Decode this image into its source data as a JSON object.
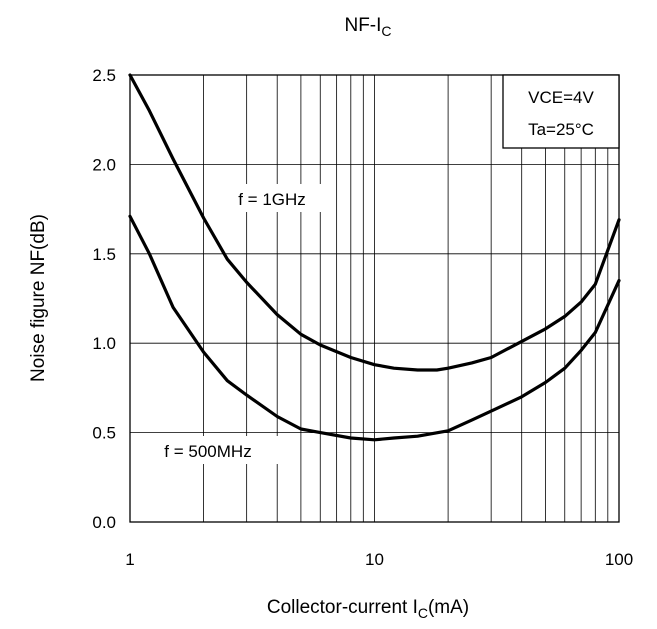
{
  "chart_data": {
    "type": "line",
    "title_main": "NF-I",
    "title_sub": "C",
    "xlabel_main": "Collector-current I",
    "xlabel_sub": "C",
    "xlabel_unit": "(mA)",
    "ylabel": "Noise figure NF(dB)",
    "x_scale": "log",
    "xlim": [
      1,
      100
    ],
    "ylim": [
      0,
      2.5
    ],
    "x_ticks": [
      1,
      10,
      100
    ],
    "x_tick_labels": [
      "1",
      "10",
      "100"
    ],
    "y_ticks": [
      0,
      0.5,
      1.0,
      1.5,
      2.0,
      2.5
    ],
    "y_tick_labels": [
      "0.0",
      "0.5",
      "1.0",
      "1.5",
      "2.0",
      "2.5"
    ],
    "grid": true,
    "conditions": [
      "VCE=4V",
      "Ta=25°C"
    ],
    "series": [
      {
        "name": "f = 1GHz",
        "x": [
          1,
          1.2,
          1.5,
          2,
          2.5,
          3,
          4,
          5,
          6,
          8,
          10,
          12,
          15,
          18,
          20,
          25,
          30,
          40,
          50,
          60,
          70,
          80,
          100
        ],
        "y": [
          2.5,
          2.3,
          2.03,
          1.7,
          1.47,
          1.34,
          1.16,
          1.05,
          0.99,
          0.92,
          0.88,
          0.86,
          0.85,
          0.85,
          0.86,
          0.89,
          0.92,
          1.01,
          1.08,
          1.15,
          1.23,
          1.33,
          1.69
        ]
      },
      {
        "name": "f = 500MHz",
        "x": [
          1,
          1.2,
          1.5,
          2,
          2.5,
          3,
          4,
          5,
          6,
          8,
          10,
          12,
          15,
          20,
          25,
          30,
          40,
          50,
          60,
          70,
          80,
          100
        ],
        "y": [
          1.71,
          1.5,
          1.2,
          0.95,
          0.79,
          0.71,
          0.59,
          0.52,
          0.5,
          0.47,
          0.46,
          0.47,
          0.48,
          0.51,
          0.57,
          0.62,
          0.7,
          0.78,
          0.86,
          0.96,
          1.06,
          1.35
        ]
      }
    ]
  }
}
